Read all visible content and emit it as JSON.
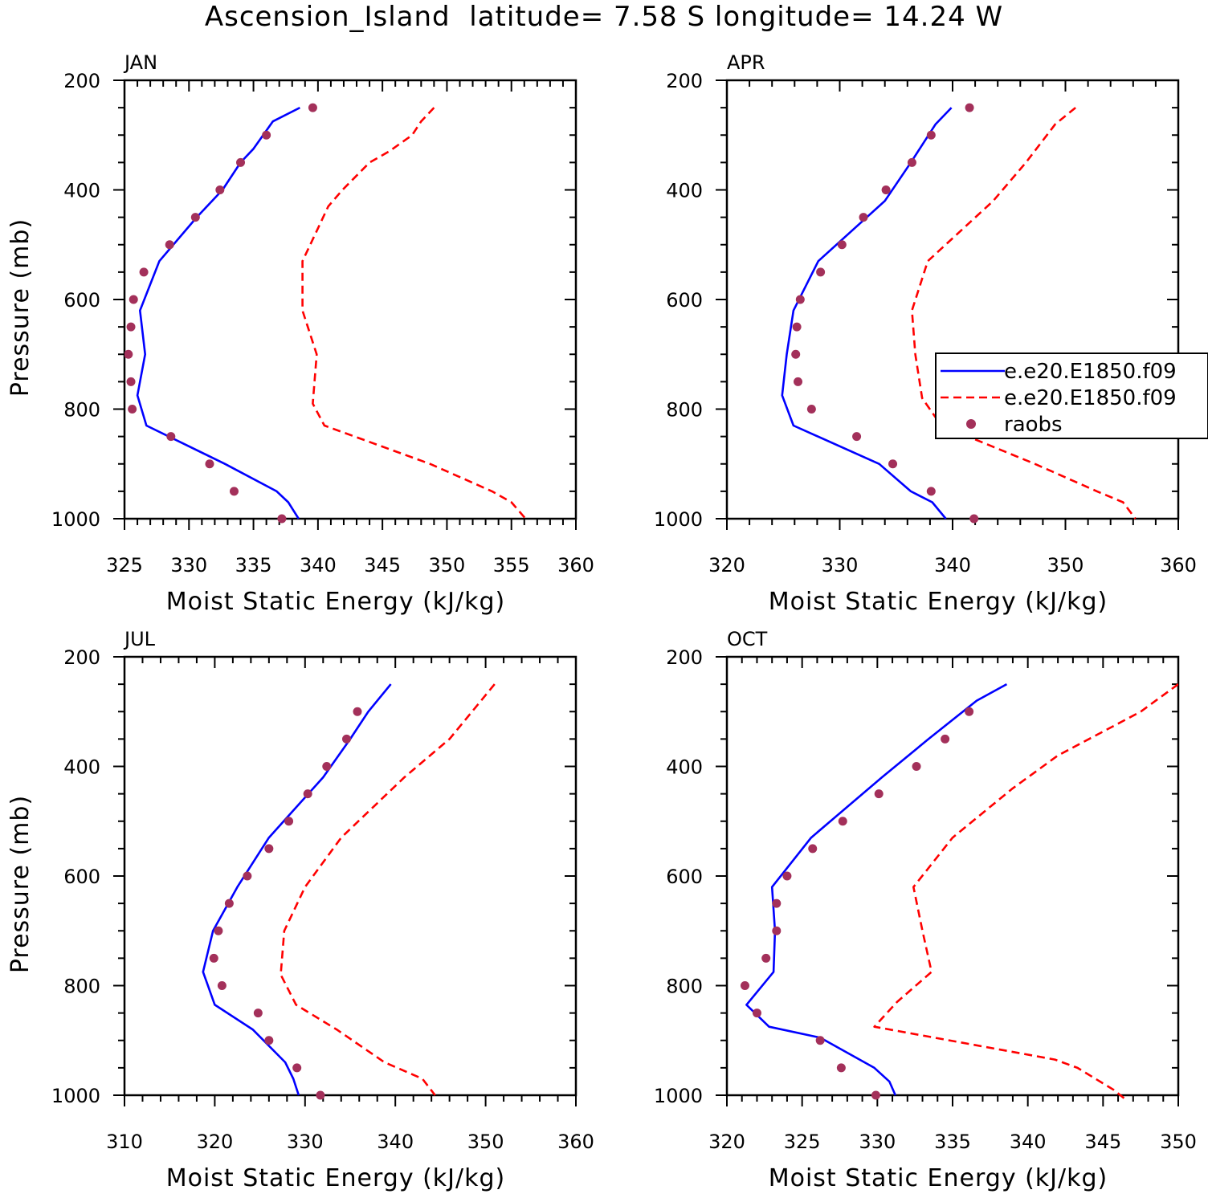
{
  "title": "Ascension_Island  latitude= 7.58 S longitude= 14.24 W",
  "colors": {
    "model_solid": "#0000ff",
    "model_dashed": "#ff0000",
    "raobs": "#a3305a",
    "axes": "#000000"
  },
  "legend": {
    "entries": [
      {
        "label": "e.e20.E1850.f09",
        "style": "solid",
        "color": "#0000ff"
      },
      {
        "label": "e.e20.E1850.f09",
        "style": "dashed",
        "color": "#ff0000"
      },
      {
        "label": "raobs",
        "style": "marker",
        "color": "#a3305a"
      }
    ]
  },
  "chart_data": [
    {
      "type": "line",
      "panel": "JAN",
      "xlabel": "Moist Static Energy (kJ/kg)",
      "ylabel": "Pressure (mb)",
      "xlim": [
        325,
        360
      ],
      "x_ticks": [
        325,
        330,
        335,
        340,
        345,
        350,
        355,
        360
      ],
      "x_minor_step": 1,
      "ylim": [
        1000,
        200
      ],
      "y_ticks": [
        200,
        400,
        600,
        800,
        1000
      ],
      "y_minor_step": 50,
      "series": [
        {
          "name": "e.e20.E1850.f09",
          "style": "solid",
          "pressure": [
            250,
            275,
            325,
            350,
            400,
            450,
            530,
            620,
            700,
            775,
            830,
            900,
            950,
            970,
            1000
          ],
          "values": [
            338.6,
            336.5,
            335.0,
            334.0,
            332.6,
            330.6,
            327.7,
            326.2,
            326.6,
            326.0,
            326.7,
            332.8,
            336.8,
            337.7,
            338.5
          ]
        },
        {
          "name": "e.e20.E1850.f09",
          "style": "dashed",
          "pressure": [
            250,
            275,
            300,
            330,
            350,
            400,
            430,
            470,
            530,
            620,
            700,
            790,
            830,
            900,
            950,
            970,
            1000
          ],
          "values": [
            349.0,
            348.0,
            347.3,
            345.5,
            344.0,
            341.9,
            340.8,
            340.0,
            338.8,
            338.8,
            339.9,
            339.6,
            340.5,
            348.7,
            353.5,
            355.0,
            356.1
          ]
        },
        {
          "name": "raobs",
          "style": "marker",
          "pressure": [
            250,
            300,
            350,
            400,
            450,
            500,
            550,
            600,
            650,
            700,
            750,
            800,
            850,
            900,
            950,
            1000
          ],
          "values": [
            339.6,
            336.0,
            334.0,
            332.4,
            330.5,
            328.5,
            326.5,
            325.7,
            325.5,
            325.3,
            325.5,
            325.6,
            328.6,
            331.6,
            333.5,
            337.2
          ]
        }
      ]
    },
    {
      "type": "line",
      "panel": "APR",
      "xlabel": "Moist Static Energy (kJ/kg)",
      "ylabel": "",
      "xlim": [
        320,
        360
      ],
      "x_ticks": [
        320,
        330,
        340,
        350,
        360
      ],
      "x_minor_step": 2,
      "ylim": [
        1000,
        200
      ],
      "y_ticks": [
        200,
        400,
        600,
        800,
        1000
      ],
      "y_minor_step": 50,
      "series": [
        {
          "name": "e.e20.E1850.f09",
          "style": "solid",
          "pressure": [
            250,
            280,
            350,
            420,
            530,
            620,
            700,
            775,
            830,
            900,
            950,
            970,
            1000
          ],
          "values": [
            339.9,
            338.5,
            336.3,
            334.0,
            328.1,
            325.9,
            325.3,
            324.9,
            325.9,
            333.5,
            336.3,
            338.2,
            339.4
          ]
        },
        {
          "name": "e.e20.E1850.f09",
          "style": "dashed",
          "pressure": [
            250,
            280,
            350,
            420,
            530,
            620,
            700,
            780,
            830,
            900,
            950,
            970,
            1000
          ],
          "values": [
            350.9,
            349.1,
            346.5,
            343.6,
            337.8,
            336.4,
            336.7,
            337.3,
            339.0,
            347.3,
            352.8,
            355.1,
            356.2
          ]
        },
        {
          "name": "raobs",
          "style": "marker",
          "pressure": [
            250,
            300,
            350,
            400,
            450,
            500,
            550,
            600,
            650,
            700,
            750,
            800,
            850,
            900,
            950,
            1000
          ],
          "values": [
            341.5,
            338.1,
            336.4,
            334.1,
            332.1,
            330.2,
            328.3,
            326.5,
            326.2,
            326.1,
            326.3,
            327.5,
            331.5,
            334.7,
            338.1,
            341.9
          ]
        }
      ]
    },
    {
      "type": "line",
      "panel": "JUL",
      "xlabel": "Moist Static Energy (kJ/kg)",
      "ylabel": "Pressure (mb)",
      "xlim": [
        310,
        360
      ],
      "x_ticks": [
        310,
        320,
        330,
        340,
        350,
        360
      ],
      "x_minor_step": 2,
      "ylim": [
        1000,
        200
      ],
      "y_ticks": [
        200,
        400,
        600,
        800,
        1000
      ],
      "y_minor_step": 50,
      "series": [
        {
          "name": "e.e20.E1850.f09",
          "style": "solid",
          "pressure": [
            250,
            300,
            350,
            420,
            530,
            620,
            700,
            775,
            835,
            880,
            940,
            970,
            1000
          ],
          "values": [
            339.5,
            337.0,
            335.0,
            332.0,
            326.0,
            322.5,
            319.8,
            318.7,
            320.0,
            324.2,
            327.8,
            328.7,
            329.3
          ]
        },
        {
          "name": "e.e20.E1850.f09",
          "style": "dashed",
          "pressure": [
            250,
            300,
            350,
            420,
            530,
            620,
            700,
            780,
            835,
            880,
            940,
            970,
            1000
          ],
          "values": [
            351.0,
            348.5,
            346.0,
            341.0,
            334.0,
            330.0,
            327.7,
            327.3,
            329.0,
            333.5,
            338.8,
            343.0,
            344.4
          ]
        },
        {
          "name": "raobs",
          "style": "marker",
          "pressure": [
            300,
            350,
            400,
            450,
            500,
            550,
            600,
            650,
            700,
            750,
            800,
            850,
            900,
            950,
            1000
          ],
          "values": [
            335.8,
            334.6,
            332.4,
            330.3,
            328.2,
            326.0,
            323.6,
            321.6,
            320.4,
            319.9,
            320.8,
            324.8,
            326.0,
            329.1,
            331.7
          ]
        }
      ]
    },
    {
      "type": "line",
      "panel": "OCT",
      "xlabel": "Moist Static Energy (kJ/kg)",
      "ylabel": "",
      "xlim": [
        320,
        350
      ],
      "x_ticks": [
        320,
        325,
        330,
        335,
        340,
        345,
        350
      ],
      "x_minor_step": 1,
      "ylim": [
        1000,
        200
      ],
      "y_ticks": [
        200,
        400,
        600,
        800,
        1000
      ],
      "y_minor_step": 50,
      "series": [
        {
          "name": "e.e20.E1850.f09",
          "style": "solid",
          "pressure": [
            250,
            280,
            350,
            420,
            530,
            620,
            700,
            775,
            835,
            875,
            895,
            950,
            975,
            1000
          ],
          "values": [
            338.6,
            336.6,
            333.4,
            330.3,
            325.6,
            323.0,
            323.2,
            323.1,
            321.3,
            322.8,
            326.2,
            329.8,
            330.8,
            331.2
          ]
        },
        {
          "name": "e.e20.E1850.f09",
          "style": "dashed",
          "pressure": [
            250,
            300,
            380,
            440,
            530,
            620,
            700,
            775,
            830,
            875,
            935,
            950,
            990,
            1010
          ],
          "values": [
            350.0,
            347.5,
            342.0,
            339.0,
            335.0,
            332.4,
            333.0,
            333.6,
            331.3,
            329.8,
            341.8,
            343.3,
            345.7,
            346.6
          ]
        },
        {
          "name": "raobs",
          "style": "marker",
          "pressure": [
            300,
            350,
            400,
            450,
            500,
            550,
            600,
            650,
            700,
            750,
            800,
            850,
            900,
            950,
            1000
          ],
          "values": [
            336.1,
            334.5,
            332.6,
            330.1,
            327.7,
            325.7,
            324.0,
            323.3,
            323.3,
            322.6,
            321.2,
            322.0,
            326.2,
            327.6,
            329.9
          ]
        }
      ]
    }
  ]
}
